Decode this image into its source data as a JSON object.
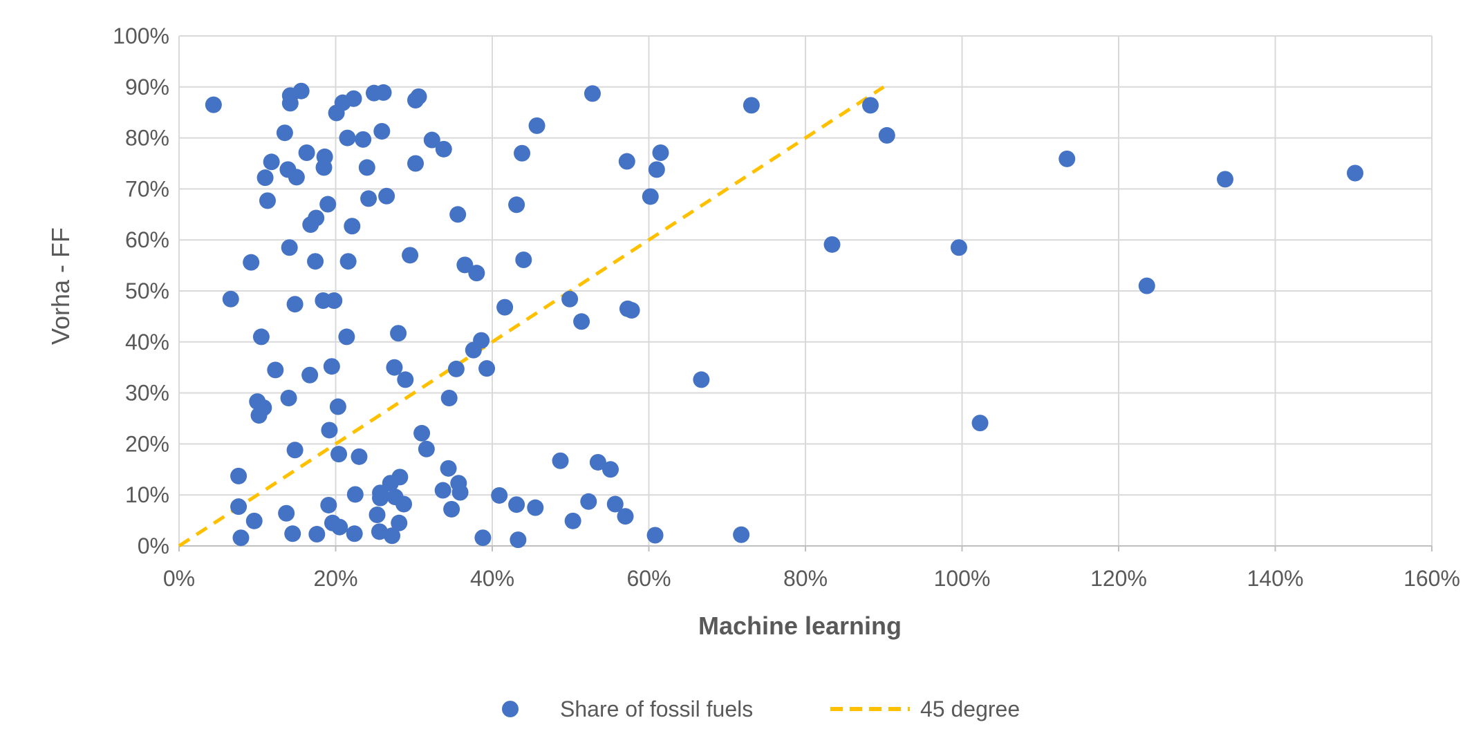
{
  "chart_data": {
    "type": "scatter",
    "title": "",
    "xlabel": "Machine learning",
    "ylabel": "Vorha - FF",
    "xlim": [
      0,
      1.6
    ],
    "ylim": [
      0,
      1.0
    ],
    "x_tick_values": [
      0,
      0.2,
      0.4,
      0.6,
      0.8,
      1.0,
      1.2,
      1.4,
      1.6
    ],
    "x_tick_labels": [
      "0%",
      "20%",
      "40%",
      "60%",
      "80%",
      "100%",
      "120%",
      "140%",
      "160%"
    ],
    "y_tick_values": [
      0,
      0.1,
      0.2,
      0.3,
      0.4,
      0.5,
      0.6,
      0.7,
      0.8,
      0.9,
      1.0
    ],
    "y_tick_labels": [
      "0%",
      "10%",
      "20%",
      "30%",
      "40%",
      "50%",
      "60%",
      "70%",
      "80%",
      "90%",
      "100%"
    ],
    "grid": true,
    "legend_position": "bottom",
    "series": [
      {
        "name": "Share of fossil fuels",
        "type": "scatter",
        "color": "#4472C4",
        "marker": "circle",
        "points": [
          [
            0.044,
            0.865
          ],
          [
            0.066,
            0.484
          ],
          [
            0.076,
            0.137
          ],
          [
            0.076,
            0.077
          ],
          [
            0.079,
            0.016
          ],
          [
            0.092,
            0.556
          ],
          [
            0.096,
            0.049
          ],
          [
            0.1,
            0.283
          ],
          [
            0.102,
            0.256
          ],
          [
            0.105,
            0.41
          ],
          [
            0.108,
            0.271
          ],
          [
            0.11,
            0.722
          ],
          [
            0.113,
            0.677
          ],
          [
            0.118,
            0.753
          ],
          [
            0.123,
            0.345
          ],
          [
            0.135,
            0.81
          ],
          [
            0.137,
            0.064
          ],
          [
            0.139,
            0.738
          ],
          [
            0.14,
            0.29
          ],
          [
            0.141,
            0.585
          ],
          [
            0.142,
            0.868
          ],
          [
            0.142,
            0.883
          ],
          [
            0.145,
            0.024
          ],
          [
            0.148,
            0.474
          ],
          [
            0.148,
            0.188
          ],
          [
            0.15,
            0.723
          ],
          [
            0.156,
            0.892
          ],
          [
            0.163,
            0.771
          ],
          [
            0.167,
            0.335
          ],
          [
            0.168,
            0.63
          ],
          [
            0.174,
            0.558
          ],
          [
            0.175,
            0.643
          ],
          [
            0.176,
            0.023
          ],
          [
            0.184,
            0.481
          ],
          [
            0.185,
            0.742
          ],
          [
            0.186,
            0.763
          ],
          [
            0.19,
            0.67
          ],
          [
            0.191,
            0.08
          ],
          [
            0.192,
            0.227
          ],
          [
            0.195,
            0.352
          ],
          [
            0.196,
            0.045
          ],
          [
            0.198,
            0.481
          ],
          [
            0.201,
            0.849
          ],
          [
            0.203,
            0.273
          ],
          [
            0.204,
            0.18
          ],
          [
            0.205,
            0.037
          ],
          [
            0.209,
            0.869
          ],
          [
            0.214,
            0.41
          ],
          [
            0.215,
            0.8
          ],
          [
            0.216,
            0.558
          ],
          [
            0.221,
            0.627
          ],
          [
            0.223,
            0.877
          ],
          [
            0.224,
            0.024
          ],
          [
            0.225,
            0.101
          ],
          [
            0.23,
            0.175
          ],
          [
            0.235,
            0.797
          ],
          [
            0.24,
            0.742
          ],
          [
            0.242,
            0.681
          ],
          [
            0.249,
            0.888
          ],
          [
            0.253,
            0.061
          ],
          [
            0.256,
            0.028
          ],
          [
            0.257,
            0.094
          ],
          [
            0.257,
            0.104
          ],
          [
            0.259,
            0.813
          ],
          [
            0.261,
            0.889
          ],
          [
            0.265,
            0.686
          ],
          [
            0.27,
            0.123
          ],
          [
            0.272,
            0.02
          ],
          [
            0.275,
            0.35
          ],
          [
            0.276,
            0.096
          ],
          [
            0.28,
            0.417
          ],
          [
            0.281,
            0.045
          ],
          [
            0.282,
            0.135
          ],
          [
            0.287,
            0.082
          ],
          [
            0.289,
            0.326
          ],
          [
            0.295,
            0.57
          ],
          [
            0.302,
            0.874
          ],
          [
            0.302,
            0.75
          ],
          [
            0.306,
            0.881
          ],
          [
            0.31,
            0.221
          ],
          [
            0.316,
            0.19
          ],
          [
            0.323,
            0.796
          ],
          [
            0.337,
            0.109
          ],
          [
            0.338,
            0.778
          ],
          [
            0.344,
            0.152
          ],
          [
            0.345,
            0.29
          ],
          [
            0.348,
            0.072
          ],
          [
            0.354,
            0.347
          ],
          [
            0.356,
            0.65
          ],
          [
            0.357,
            0.123
          ],
          [
            0.359,
            0.105
          ],
          [
            0.365,
            0.551
          ],
          [
            0.376,
            0.384
          ],
          [
            0.38,
            0.535
          ],
          [
            0.386,
            0.403
          ],
          [
            0.388,
            0.016
          ],
          [
            0.393,
            0.348
          ],
          [
            0.409,
            0.099
          ],
          [
            0.416,
            0.468
          ],
          [
            0.431,
            0.669
          ],
          [
            0.431,
            0.081
          ],
          [
            0.433,
            0.012
          ],
          [
            0.438,
            0.77
          ],
          [
            0.44,
            0.561
          ],
          [
            0.455,
            0.075
          ],
          [
            0.457,
            0.824
          ],
          [
            0.487,
            0.167
          ],
          [
            0.499,
            0.484
          ],
          [
            0.503,
            0.049
          ],
          [
            0.514,
            0.44
          ],
          [
            0.523,
            0.087
          ],
          [
            0.528,
            0.887
          ],
          [
            0.535,
            0.164
          ],
          [
            0.551,
            0.15
          ],
          [
            0.557,
            0.082
          ],
          [
            0.57,
            0.058
          ],
          [
            0.572,
            0.754
          ],
          [
            0.573,
            0.465
          ],
          [
            0.578,
            0.462
          ],
          [
            0.602,
            0.685
          ],
          [
            0.608,
            0.021
          ],
          [
            0.61,
            0.738
          ],
          [
            0.615,
            0.771
          ],
          [
            0.667,
            0.326
          ],
          [
            0.718,
            0.022
          ],
          [
            0.731,
            0.864
          ],
          [
            0.834,
            0.591
          ],
          [
            0.883,
            0.864
          ],
          [
            0.904,
            0.805
          ],
          [
            0.996,
            0.585
          ],
          [
            1.023,
            0.241
          ],
          [
            1.134,
            0.759
          ],
          [
            1.236,
            0.51
          ],
          [
            1.336,
            0.719
          ],
          [
            1.502,
            0.731
          ]
        ]
      },
      {
        "name": "45 degree",
        "type": "line",
        "color": "#FFC000",
        "dash": "dashed",
        "points": [
          [
            0,
            0
          ],
          [
            0.9,
            0.9
          ]
        ]
      }
    ]
  }
}
